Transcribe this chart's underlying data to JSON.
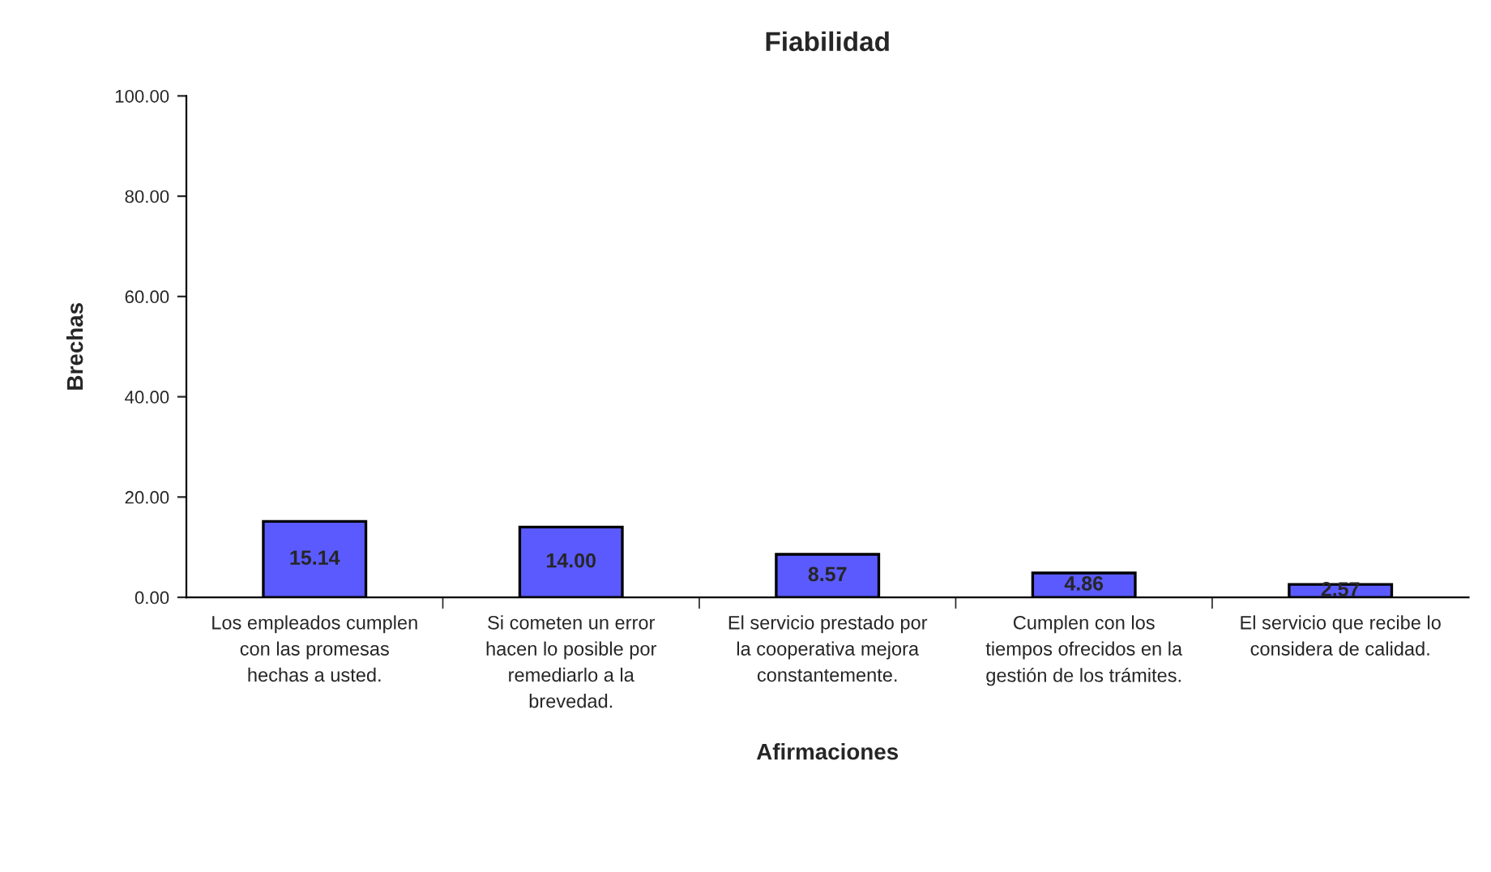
{
  "chart_data": {
    "type": "bar",
    "title": "Fiabilidad",
    "xlabel": "Afirmaciones",
    "ylabel": "Brechas",
    "categories": [
      "Los empleados cumplen\ncon las promesas\nhechas a usted.",
      "Si cometen un error\nhacen lo posible por\nremediarlo a la\nbrevedad.",
      "El servicio prestado por\nla cooperativa mejora\nconstantemente.",
      "Cumplen con los\ntiempos ofrecidos en la\ngestión de los trámites.",
      "El servicio que recibe lo\nconsidera de calidad."
    ],
    "values": [
      15.14,
      14.0,
      8.57,
      4.86,
      2.57
    ],
    "value_labels": [
      "15.14",
      "14.00",
      "8.57",
      "4.86",
      "2.57"
    ],
    "color": "#5a5aff",
    "ylim": [
      0,
      100
    ],
    "yticks": [
      {
        "value": 0,
        "label": "0.00"
      },
      {
        "value": 20,
        "label": "20.00"
      },
      {
        "value": 40,
        "label": "40.00"
      },
      {
        "value": 60,
        "label": "60.00"
      },
      {
        "value": 80,
        "label": "80.00"
      },
      {
        "value": 100,
        "label": "100.00"
      }
    ],
    "grid": false,
    "legend": false
  }
}
